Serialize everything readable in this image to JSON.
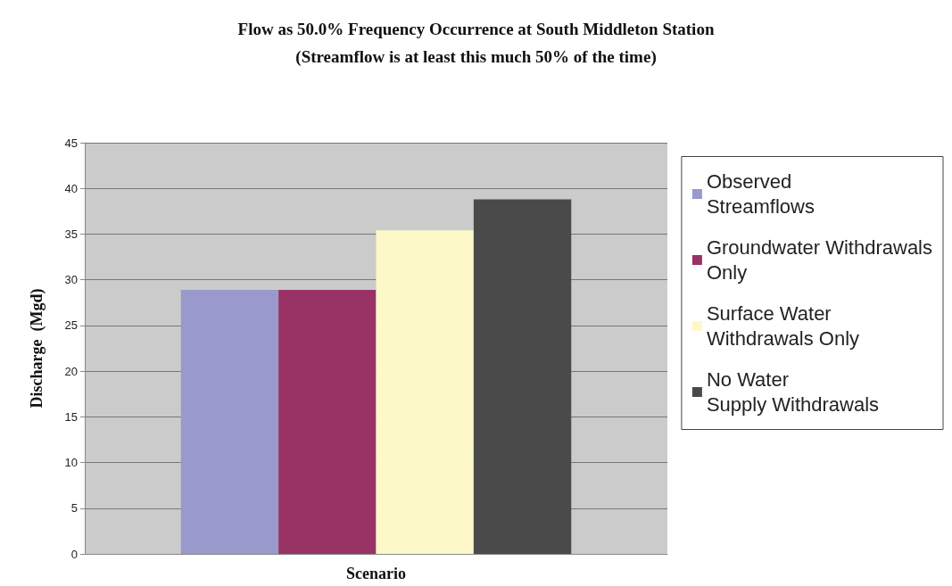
{
  "chart_data": {
    "type": "bar",
    "title": "Flow as 50.0% Frequency Occurrence at South Middleton Station",
    "subtitle": "(Streamflow is at least this much 50% of the time)",
    "xlabel": "Scenario",
    "ylabel": "Discharge  (Mgd)",
    "categories": [
      null
    ],
    "series": [
      {
        "name": "Observed Streamflows",
        "color": "#9999cc",
        "values": [
          28.9
        ]
      },
      {
        "name": "Groundwater Withdrawals Only",
        "color": "#993366",
        "values": [
          28.9
        ]
      },
      {
        "name": "Surface Water Withdrawals Only",
        "color": "#fdf8c8",
        "values": [
          35.4
        ]
      },
      {
        "name": "No Water Supply Withdrawals",
        "color": "#4a4a4a",
        "values": [
          38.8
        ]
      }
    ],
    "ylim": [
      0,
      45
    ],
    "yticks": [
      0,
      5,
      10,
      15,
      20,
      25,
      30,
      35,
      40,
      45
    ],
    "grid": "y",
    "legend": "right"
  }
}
